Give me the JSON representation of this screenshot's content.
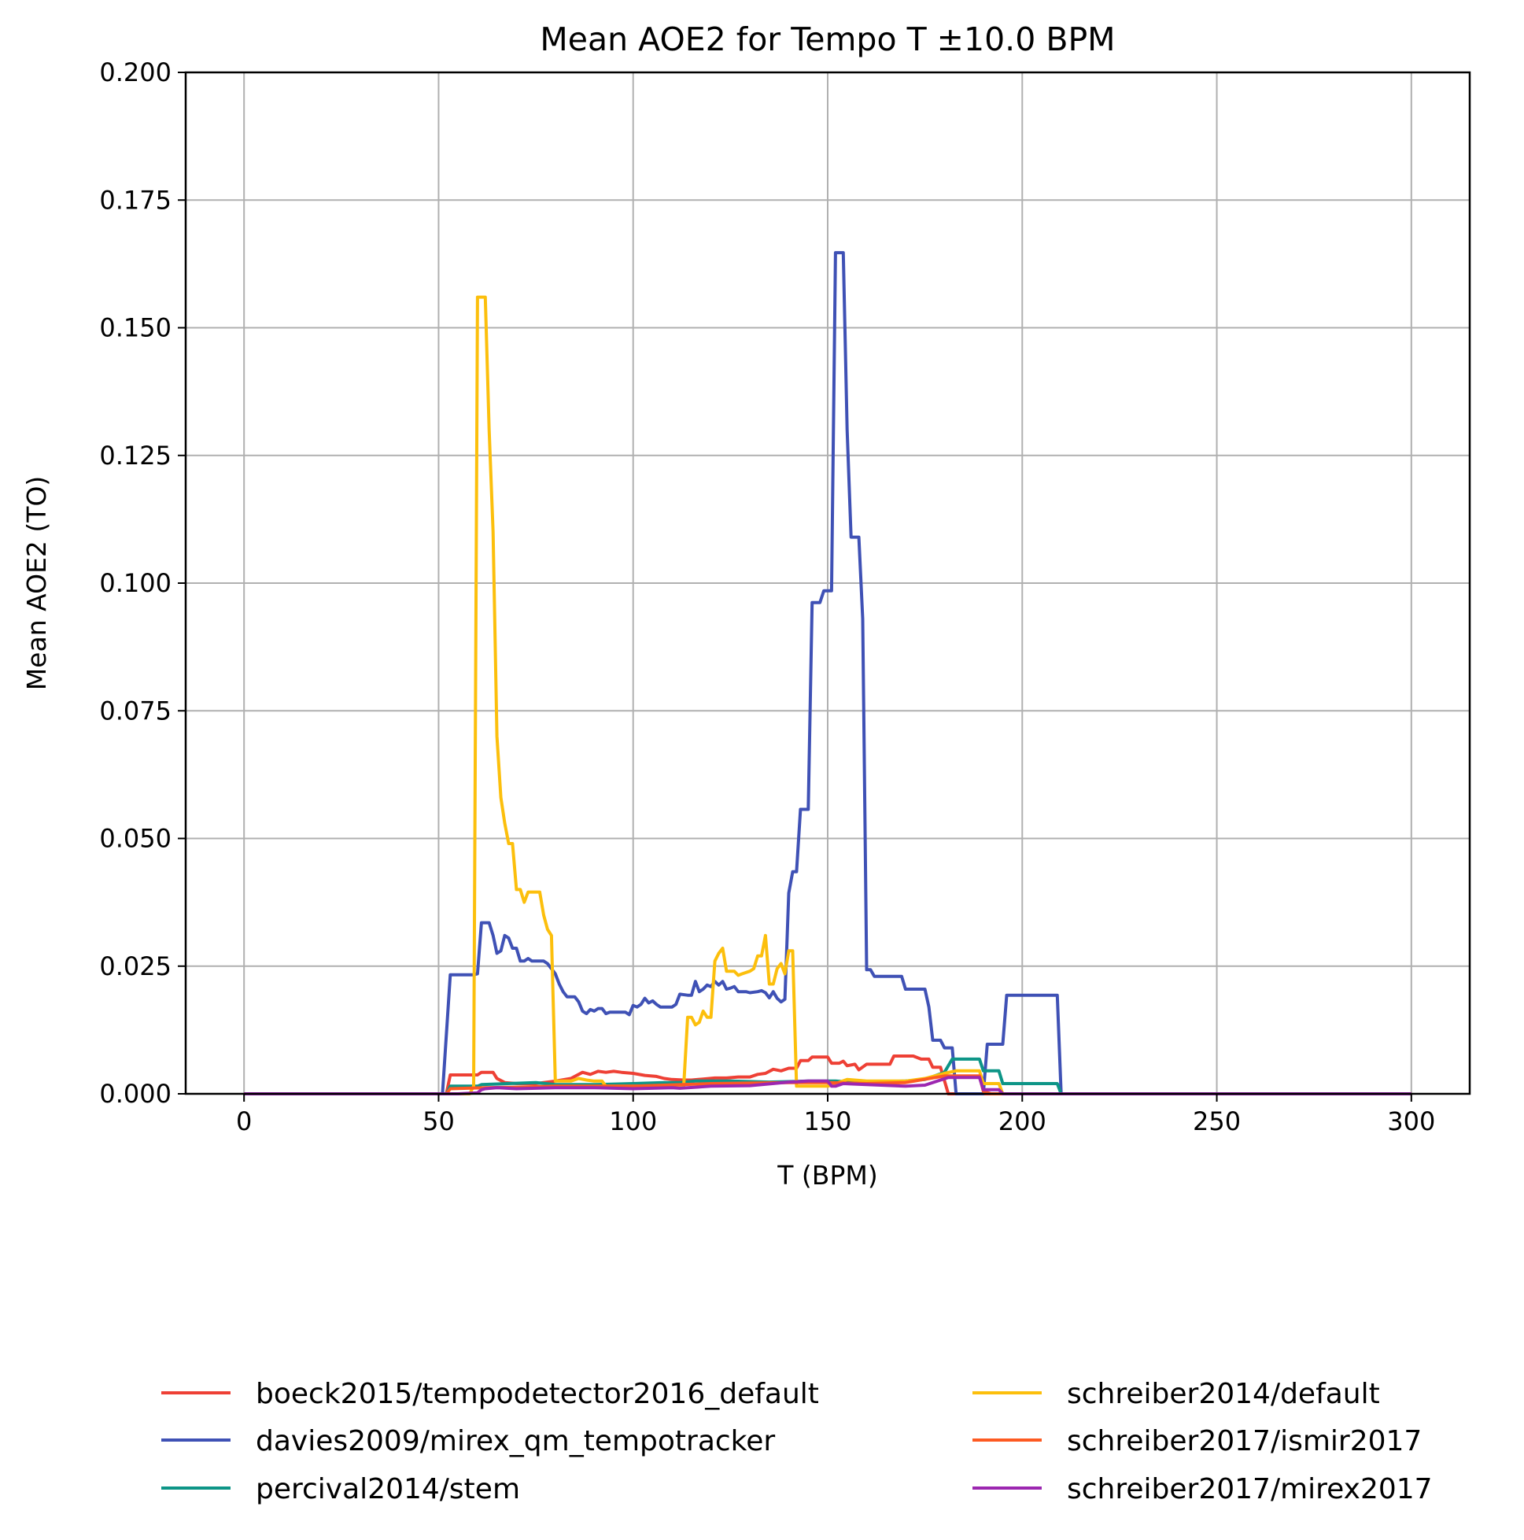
{
  "chart_data": {
    "type": "line",
    "title": "Mean AOE2 for Tempo T ±10.0 BPM",
    "xlabel": "T (BPM)",
    "ylabel": "Mean AOE2 (TO)",
    "xlim": [
      -15,
      315
    ],
    "ylim": [
      0,
      0.2
    ],
    "xticks": [
      0,
      50,
      100,
      150,
      200,
      250,
      300
    ],
    "xtick_labels": [
      "0",
      "50",
      "100",
      "150",
      "200",
      "250",
      "300"
    ],
    "yticks": [
      0,
      0.025,
      0.05,
      0.075,
      0.1,
      0.125,
      0.15,
      0.175,
      0.2
    ],
    "ytick_labels": [
      "0.000",
      "0.025",
      "0.050",
      "0.075",
      "0.100",
      "0.125",
      "0.150",
      "0.175",
      "0.200"
    ],
    "grid": true,
    "legend_position": "bottom, below plot, 2 columns",
    "series": [
      {
        "name": "boeck2015/tempodetector2016_default",
        "color": "#ee4035",
        "points": [
          [
            0,
            0
          ],
          [
            52,
            0
          ],
          [
            53,
            0.0037
          ],
          [
            60,
            0.0037
          ],
          [
            61,
            0.0042
          ],
          [
            63,
            0.0042
          ],
          [
            64,
            0.0042
          ],
          [
            65,
            0.003
          ],
          [
            67,
            0.0022
          ],
          [
            70,
            0.002
          ],
          [
            75,
            0.002
          ],
          [
            80,
            0.0025
          ],
          [
            84,
            0.003
          ],
          [
            87,
            0.0042
          ],
          [
            89,
            0.0038
          ],
          [
            91,
            0.0044
          ],
          [
            93,
            0.0042
          ],
          [
            95,
            0.0044
          ],
          [
            97,
            0.0042
          ],
          [
            100,
            0.004
          ],
          [
            103,
            0.0036
          ],
          [
            106,
            0.0034
          ],
          [
            108,
            0.003
          ],
          [
            110,
            0.0028
          ],
          [
            113,
            0.0027
          ],
          [
            115,
            0.0027
          ],
          [
            118,
            0.0029
          ],
          [
            121,
            0.0031
          ],
          [
            124,
            0.0031
          ],
          [
            127,
            0.0033
          ],
          [
            130,
            0.0033
          ],
          [
            132,
            0.0038
          ],
          [
            134,
            0.004
          ],
          [
            136,
            0.0048
          ],
          [
            138,
            0.0045
          ],
          [
            140,
            0.005
          ],
          [
            142,
            0.005
          ],
          [
            143,
            0.0065
          ],
          [
            145,
            0.0065
          ],
          [
            146,
            0.0072
          ],
          [
            150,
            0.0072
          ],
          [
            151,
            0.006
          ],
          [
            153,
            0.006
          ],
          [
            154,
            0.0064
          ],
          [
            155,
            0.0055
          ],
          [
            157,
            0.0058
          ],
          [
            158,
            0.0047
          ],
          [
            160,
            0.0058
          ],
          [
            166,
            0.0058
          ],
          [
            167,
            0.0074
          ],
          [
            172,
            0.0074
          ],
          [
            174,
            0.0068
          ],
          [
            176,
            0.0068
          ],
          [
            177,
            0.0052
          ],
          [
            179,
            0.0052
          ],
          [
            181,
            0
          ],
          [
            300,
            0
          ]
        ]
      },
      {
        "name": "davies2009/mirex_qm_tempotracker",
        "color": "#3f51b5",
        "points": [
          [
            0,
            0
          ],
          [
            51,
            0
          ],
          [
            53,
            0.0233
          ],
          [
            59,
            0.0233
          ],
          [
            60,
            0.0235
          ],
          [
            61,
            0.0335
          ],
          [
            63,
            0.0335
          ],
          [
            64,
            0.031
          ],
          [
            65,
            0.0275
          ],
          [
            66,
            0.028
          ],
          [
            67,
            0.031
          ],
          [
            68,
            0.0305
          ],
          [
            69,
            0.0285
          ],
          [
            70,
            0.0285
          ],
          [
            71,
            0.026
          ],
          [
            72,
            0.026
          ],
          [
            73,
            0.0265
          ],
          [
            74,
            0.026
          ],
          [
            77,
            0.026
          ],
          [
            78,
            0.0255
          ],
          [
            79,
            0.0245
          ],
          [
            80,
            0.0235
          ],
          [
            81,
            0.0215
          ],
          [
            82,
            0.02
          ],
          [
            83,
            0.019
          ],
          [
            85,
            0.019
          ],
          [
            86,
            0.018
          ],
          [
            87,
            0.0162
          ],
          [
            88,
            0.0157
          ],
          [
            89,
            0.0165
          ],
          [
            90,
            0.0162
          ],
          [
            91,
            0.0167
          ],
          [
            92,
            0.0167
          ],
          [
            93,
            0.0157
          ],
          [
            94,
            0.016
          ],
          [
            98,
            0.016
          ],
          [
            99,
            0.0155
          ],
          [
            100,
            0.0173
          ],
          [
            101,
            0.017
          ],
          [
            102,
            0.0175
          ],
          [
            103,
            0.0187
          ],
          [
            104,
            0.0178
          ],
          [
            105,
            0.0182
          ],
          [
            106,
            0.0175
          ],
          [
            107,
            0.017
          ],
          [
            110,
            0.017
          ],
          [
            111,
            0.0175
          ],
          [
            112,
            0.0195
          ],
          [
            114,
            0.0193
          ],
          [
            115,
            0.0193
          ],
          [
            116,
            0.022
          ],
          [
            117,
            0.02
          ],
          [
            118,
            0.0205
          ],
          [
            119,
            0.0213
          ],
          [
            120,
            0.021
          ],
          [
            121,
            0.022
          ],
          [
            122,
            0.0213
          ],
          [
            123,
            0.022
          ],
          [
            124,
            0.0205
          ],
          [
            125,
            0.0207
          ],
          [
            126,
            0.021
          ],
          [
            127,
            0.02
          ],
          [
            129,
            0.02
          ],
          [
            130,
            0.0198
          ],
          [
            132,
            0.02
          ],
          [
            133,
            0.0202
          ],
          [
            134,
            0.0198
          ],
          [
            135,
            0.0188
          ],
          [
            136,
            0.02
          ],
          [
            137,
            0.0187
          ],
          [
            138,
            0.018
          ],
          [
            139,
            0.0185
          ],
          [
            140,
            0.0393
          ],
          [
            141,
            0.0435
          ],
          [
            142,
            0.0435
          ],
          [
            143,
            0.0557
          ],
          [
            145,
            0.0557
          ],
          [
            146,
            0.0962
          ],
          [
            148,
            0.0962
          ],
          [
            149,
            0.0985
          ],
          [
            151,
            0.0985
          ],
          [
            152,
            0.1647
          ],
          [
            154,
            0.1647
          ],
          [
            155,
            0.13
          ],
          [
            156,
            0.109
          ],
          [
            158,
            0.109
          ],
          [
            159,
            0.093
          ],
          [
            160,
            0.0243
          ],
          [
            161,
            0.0243
          ],
          [
            162,
            0.023
          ],
          [
            169,
            0.023
          ],
          [
            170,
            0.0205
          ],
          [
            175,
            0.0205
          ],
          [
            176,
            0.017
          ],
          [
            177,
            0.0105
          ],
          [
            179,
            0.0105
          ],
          [
            180,
            0.009
          ],
          [
            182,
            0.009
          ],
          [
            183,
            0
          ],
          [
            190,
            0
          ],
          [
            191,
            0.0097
          ],
          [
            195,
            0.0097
          ],
          [
            196,
            0.0193
          ],
          [
            209,
            0.0193
          ],
          [
            210,
            0
          ],
          [
            300,
            0
          ]
        ]
      },
      {
        "name": "percival2014/stem",
        "color": "#0d9587",
        "points": [
          [
            0,
            0
          ],
          [
            52,
            0
          ],
          [
            53,
            0.0015
          ],
          [
            60,
            0.0015
          ],
          [
            61,
            0.0018
          ],
          [
            75,
            0.0022
          ],
          [
            80,
            0.0018
          ],
          [
            90,
            0.0018
          ],
          [
            100,
            0.002
          ],
          [
            108,
            0.0022
          ],
          [
            112,
            0.0022
          ],
          [
            116,
            0.0025
          ],
          [
            125,
            0.0025
          ],
          [
            135,
            0.0023
          ],
          [
            145,
            0.0025
          ],
          [
            152,
            0.0025
          ],
          [
            158,
            0.0022
          ],
          [
            170,
            0.0025
          ],
          [
            175,
            0.0028
          ],
          [
            180,
            0.0042
          ],
          [
            182,
            0.0068
          ],
          [
            189,
            0.0068
          ],
          [
            190,
            0.0045
          ],
          [
            194,
            0.0045
          ],
          [
            195,
            0.002
          ],
          [
            209,
            0.002
          ],
          [
            210,
            0
          ],
          [
            300,
            0
          ]
        ]
      },
      {
        "name": "schreiber2014/default",
        "color": "#fcbf0c",
        "points": [
          [
            0,
            0
          ],
          [
            58,
            0
          ],
          [
            59,
            0.0015
          ],
          [
            60,
            0.156
          ],
          [
            62,
            0.156
          ],
          [
            63,
            0.13
          ],
          [
            64,
            0.11
          ],
          [
            65,
            0.07
          ],
          [
            66,
            0.058
          ],
          [
            67,
            0.053
          ],
          [
            68,
            0.049
          ],
          [
            69,
            0.049
          ],
          [
            70,
            0.04
          ],
          [
            71,
            0.04
          ],
          [
            72,
            0.0375
          ],
          [
            73,
            0.0395
          ],
          [
            76,
            0.0395
          ],
          [
            77,
            0.035
          ],
          [
            78,
            0.0322
          ],
          [
            79,
            0.031
          ],
          [
            80,
            0.0025
          ],
          [
            84,
            0.0025
          ],
          [
            86,
            0.003
          ],
          [
            88,
            0.0027
          ],
          [
            90,
            0.0025
          ],
          [
            92,
            0.0025
          ],
          [
            93,
            0.0015
          ],
          [
            100,
            0.0015
          ],
          [
            111,
            0.0015
          ],
          [
            113,
            0.0015
          ],
          [
            114,
            0.015
          ],
          [
            115,
            0.015
          ],
          [
            116,
            0.0135
          ],
          [
            117,
            0.014
          ],
          [
            118,
            0.0162
          ],
          [
            119,
            0.015
          ],
          [
            120,
            0.015
          ],
          [
            121,
            0.026
          ],
          [
            122,
            0.0275
          ],
          [
            123,
            0.0285
          ],
          [
            124,
            0.024
          ],
          [
            126,
            0.024
          ],
          [
            127,
            0.0232
          ],
          [
            128,
            0.0235
          ],
          [
            130,
            0.024
          ],
          [
            131,
            0.0245
          ],
          [
            132,
            0.027
          ],
          [
            133,
            0.027
          ],
          [
            134,
            0.031
          ],
          [
            135,
            0.0215
          ],
          [
            136,
            0.0215
          ],
          [
            137,
            0.0245
          ],
          [
            138,
            0.0255
          ],
          [
            139,
            0.0235
          ],
          [
            140,
            0.028
          ],
          [
            141,
            0.028
          ],
          [
            142,
            0.0015
          ],
          [
            150,
            0.0015
          ],
          [
            152,
            0.002
          ],
          [
            155,
            0.0028
          ],
          [
            160,
            0.0025
          ],
          [
            170,
            0.0025
          ],
          [
            175,
            0.003
          ],
          [
            180,
            0.004
          ],
          [
            183,
            0.0045
          ],
          [
            189,
            0.0045
          ],
          [
            190,
            0.002
          ],
          [
            194,
            0.002
          ],
          [
            195,
            0
          ],
          [
            300,
            0
          ]
        ]
      },
      {
        "name": "schreiber2017/ismir2017",
        "color": "#fd5a22",
        "points": [
          [
            0,
            0
          ],
          [
            52,
            0
          ],
          [
            53,
            0.001
          ],
          [
            62,
            0.0012
          ],
          [
            70,
            0.0013
          ],
          [
            80,
            0.0015
          ],
          [
            100,
            0.0015
          ],
          [
            120,
            0.002
          ],
          [
            140,
            0.0022
          ],
          [
            150,
            0.0022
          ],
          [
            160,
            0.002
          ],
          [
            170,
            0.0022
          ],
          [
            180,
            0.0035
          ],
          [
            189,
            0.0035
          ],
          [
            190,
            0.0005
          ],
          [
            192,
            0
          ],
          [
            300,
            0
          ]
        ]
      },
      {
        "name": "schreiber2017/mirex2017",
        "color": "#9c27b0",
        "points": [
          [
            0,
            0
          ],
          [
            55,
            0
          ],
          [
            60,
            0.0002
          ],
          [
            61,
            0.0008
          ],
          [
            62,
            0.001
          ],
          [
            65,
            0.0012
          ],
          [
            70,
            0.001
          ],
          [
            80,
            0.0012
          ],
          [
            90,
            0.0012
          ],
          [
            100,
            0.001
          ],
          [
            110,
            0.0012
          ],
          [
            112,
            0.0011
          ],
          [
            120,
            0.0015
          ],
          [
            130,
            0.0016
          ],
          [
            140,
            0.0023
          ],
          [
            145,
            0.0025
          ],
          [
            150,
            0.0025
          ],
          [
            151,
            0.0015
          ],
          [
            152,
            0.0015
          ],
          [
            154,
            0.002
          ],
          [
            160,
            0.0018
          ],
          [
            170,
            0.0015
          ],
          [
            175,
            0.0017
          ],
          [
            181,
            0.0032
          ],
          [
            189,
            0.0032
          ],
          [
            190,
            0.0008
          ],
          [
            194,
            0.0008
          ],
          [
            195,
            0
          ],
          [
            300,
            0
          ]
        ]
      }
    ]
  }
}
